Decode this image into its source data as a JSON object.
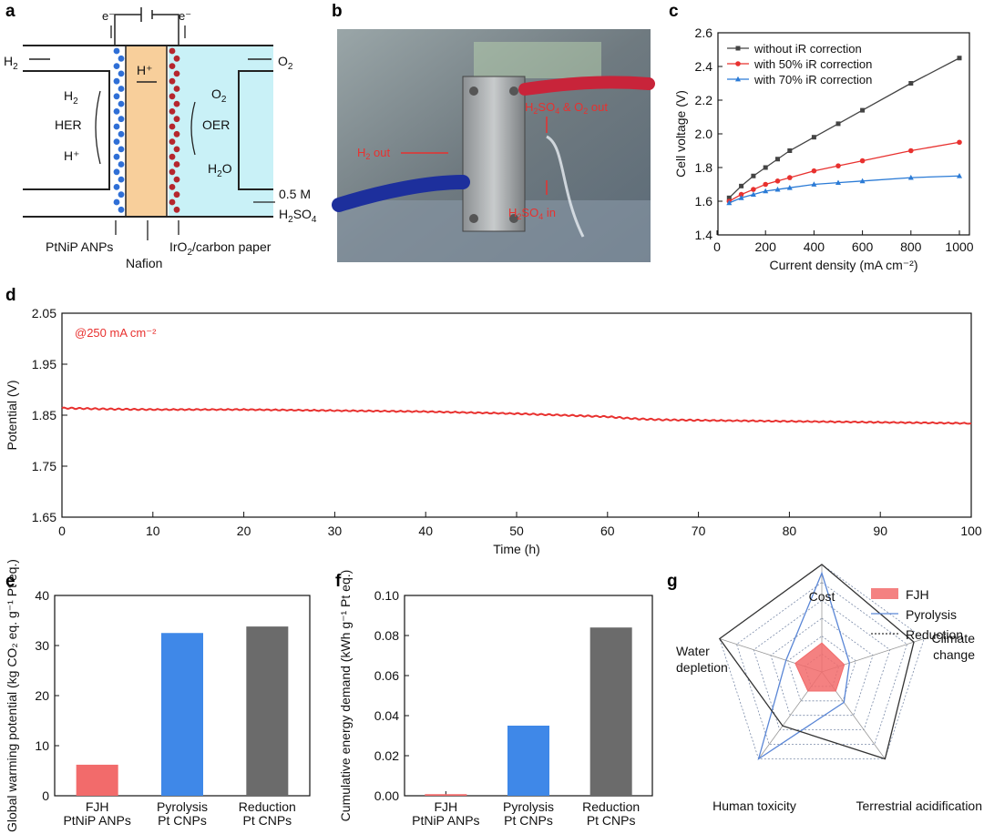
{
  "panels": {
    "a": {
      "letter": "a",
      "labels": {
        "e_left": "e⁻",
        "e_right": "e⁻",
        "h2": "H",
        "h2_sub": "2",
        "o2": "O",
        "o2_sub": "2",
        "h2_inner": "H",
        "h2_inner_sub": "2",
        "hplus_inner": "H⁺",
        "hplus_mid": "H⁺",
        "her": "HER",
        "oer": "OER",
        "o2_inner": "O",
        "o2_inner_sub": "2",
        "h2o_h": "H",
        "h2o_sub": "2",
        "h2o_o": "O",
        "conc": "0.5 M",
        "h2so4_h": "H",
        "h2so4_sub1": "2",
        "h2so4_so": "SO",
        "h2so4_sub2": "4",
        "ptnip": "PtNiP ANPs",
        "nafion": "Nafion",
        "iro2_a": "IrO",
        "iro2_sub": "2",
        "iro2_b": "/carbon paper"
      }
    },
    "b": {
      "letter": "b",
      "labels": {
        "h2_out_a": "H",
        "h2_out_sub": "2",
        "h2_out_b": " out",
        "acid_out_a": "H",
        "acid_out_sub1": "2",
        "acid_out_b": "SO",
        "acid_out_sub2": "4",
        "acid_out_c": " & O",
        "acid_out_sub3": "2",
        "acid_out_d": " out",
        "acid_in_a": "H",
        "acid_in_sub1": "2",
        "acid_in_b": "SO",
        "acid_in_sub2": "4",
        "acid_in_c": " in"
      }
    },
    "c": {
      "letter": "c"
    },
    "d": {
      "letter": "d",
      "annotation": "@250 mA cm⁻²"
    },
    "e": {
      "letter": "e"
    },
    "f": {
      "letter": "f"
    },
    "g": {
      "letter": "g"
    }
  },
  "colors": {
    "black_series": "#444444",
    "red": "#e8312f",
    "blue": "#2b7bd6",
    "fjh": "#f26b6b",
    "pyrolysis": "#3f88e8",
    "reduction": "#6b6b6b",
    "electrolyte": "#c9f1f7",
    "membrane": "#f8cf9b"
  },
  "chart_data": [
    {
      "panel": "c",
      "type": "line",
      "xlabel": "Current density (mA cm⁻²)",
      "ylabel": "Cell voltage (V)",
      "xlim": [
        0,
        1000
      ],
      "ylim": [
        1.4,
        2.6
      ],
      "xticks": [
        "0",
        "200",
        "400",
        "600",
        "800",
        "1000"
      ],
      "yticks": [
        "1.4",
        "1.6",
        "1.8",
        "2.0",
        "2.2",
        "2.4",
        "2.6"
      ],
      "legend_position": "top-left",
      "x": [
        50,
        100,
        150,
        200,
        250,
        300,
        400,
        500,
        600,
        800,
        1000
      ],
      "series": [
        {
          "name": "without iR correction",
          "color": "#444444",
          "marker": "square",
          "values": [
            1.62,
            1.69,
            1.75,
            1.8,
            1.85,
            1.9,
            1.98,
            2.06,
            2.14,
            2.3,
            2.45
          ]
        },
        {
          "name": "with 50% iR correction",
          "color": "#e8312f",
          "marker": "circle",
          "values": [
            1.6,
            1.64,
            1.67,
            1.7,
            1.72,
            1.74,
            1.78,
            1.81,
            1.84,
            1.9,
            1.95
          ]
        },
        {
          "name": "with 70% iR correction",
          "color": "#2b7bd6",
          "marker": "triangle",
          "values": [
            1.59,
            1.62,
            1.64,
            1.66,
            1.67,
            1.68,
            1.7,
            1.71,
            1.72,
            1.74,
            1.75
          ]
        }
      ]
    },
    {
      "panel": "d",
      "type": "line",
      "xlabel": "Time (h)",
      "ylabel": "Potential (V)",
      "xlim": [
        0,
        100
      ],
      "ylim": [
        1.65,
        2.05
      ],
      "xticks": [
        "0",
        "10",
        "20",
        "30",
        "40",
        "50",
        "60",
        "70",
        "80",
        "90",
        "100"
      ],
      "yticks": [
        "1.65",
        "1.75",
        "1.85",
        "1.95",
        "2.05"
      ],
      "series": [
        {
          "color": "#e8312f",
          "x": [
            0,
            5,
            10,
            20,
            30,
            40,
            50,
            55,
            60,
            63,
            66,
            70,
            80,
            90,
            100
          ],
          "values": [
            1.864,
            1.862,
            1.861,
            1.861,
            1.859,
            1.857,
            1.853,
            1.85,
            1.847,
            1.843,
            1.841,
            1.84,
            1.838,
            1.836,
            1.834
          ]
        }
      ]
    },
    {
      "panel": "e",
      "type": "bar",
      "ylabel": "Global warming potential (kg CO₂ eq. g⁻¹ Pt eq.)",
      "ylim": [
        0,
        40
      ],
      "yticks": [
        "0",
        "10",
        "20",
        "30",
        "40"
      ],
      "categories": [
        [
          "FJH",
          "PtNiP ANPs"
        ],
        [
          "Pyrolysis",
          "Pt CNPs"
        ],
        [
          "Reduction",
          "Pt CNPs"
        ]
      ],
      "values": [
        6.2,
        32.5,
        33.8
      ],
      "colors": [
        "#f26b6b",
        "#3f88e8",
        "#6b6b6b"
      ]
    },
    {
      "panel": "f",
      "type": "bar",
      "ylabel": "Cumulative energy demand (kWh g⁻¹ Pt eq.)",
      "ylim": [
        0,
        0.1
      ],
      "yticks": [
        "0.00",
        "0.02",
        "0.04",
        "0.06",
        "0.08",
        "0.10"
      ],
      "categories": [
        [
          "FJH",
          "PtNiP ANPs"
        ],
        [
          "Pyrolysis",
          "Pt CNPs"
        ],
        [
          "Reduction",
          "Pt CNPs"
        ]
      ],
      "values": [
        0.0008,
        0.035,
        0.084
      ],
      "colors": [
        "#f26b6b",
        "#3f88e8",
        "#6b6b6b"
      ]
    },
    {
      "panel": "g",
      "type": "radar",
      "axes": [
        "Cost",
        "Climate change",
        "Terrestrial acidification",
        "Human toxicity",
        "Water depletion"
      ],
      "axes_display": [
        [
          "Cost"
        ],
        [
          "Climate",
          "change"
        ],
        [
          "Terrestrial acidification"
        ],
        [
          "Human toxicity"
        ],
        [
          "Water",
          "depletion"
        ]
      ],
      "rmax": 1.0,
      "series": [
        {
          "name": "FJH",
          "style": "fill",
          "color": "#f26b6b",
          "values": [
            0.27,
            0.22,
            0.22,
            0.22,
            0.26
          ]
        },
        {
          "name": "Pyrolysis",
          "style": "line",
          "color": "#5a86d6",
          "values": [
            0.92,
            0.27,
            0.35,
            1.0,
            0.35
          ]
        },
        {
          "name": "Reduction",
          "style": "line",
          "color": "#333333",
          "values": [
            1.0,
            0.9,
            1.0,
            0.62,
            1.0
          ]
        }
      ]
    }
  ]
}
